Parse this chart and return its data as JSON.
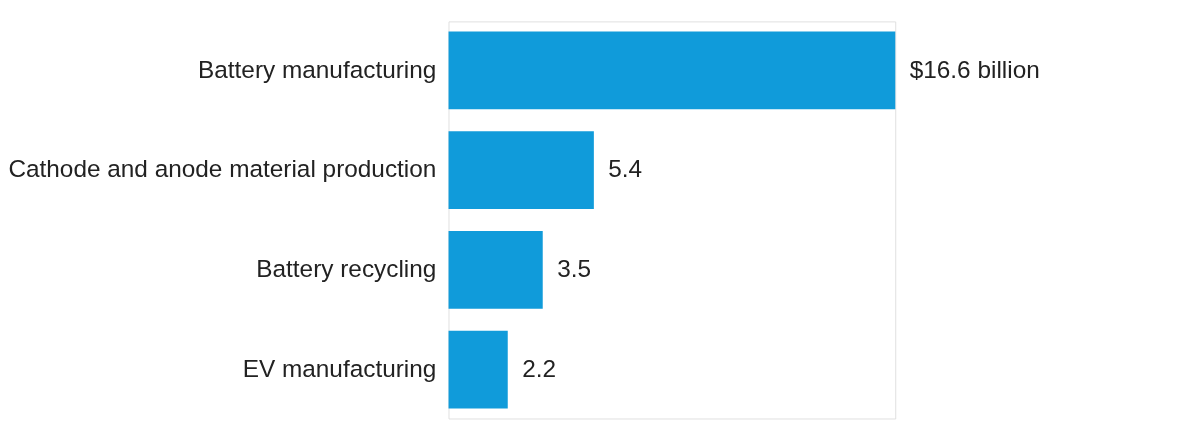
{
  "chart_data": {
    "type": "bar",
    "orientation": "horizontal",
    "categories": [
      "Battery manufacturing",
      "Cathode and anode material production",
      "Battery recycling",
      "EV manufacturing"
    ],
    "values": [
      16.6,
      5.4,
      3.5,
      2.2
    ],
    "value_labels": [
      "$16.6 billion",
      "5.4",
      "3.5",
      "2.2"
    ],
    "color": "#109bda"
  }
}
